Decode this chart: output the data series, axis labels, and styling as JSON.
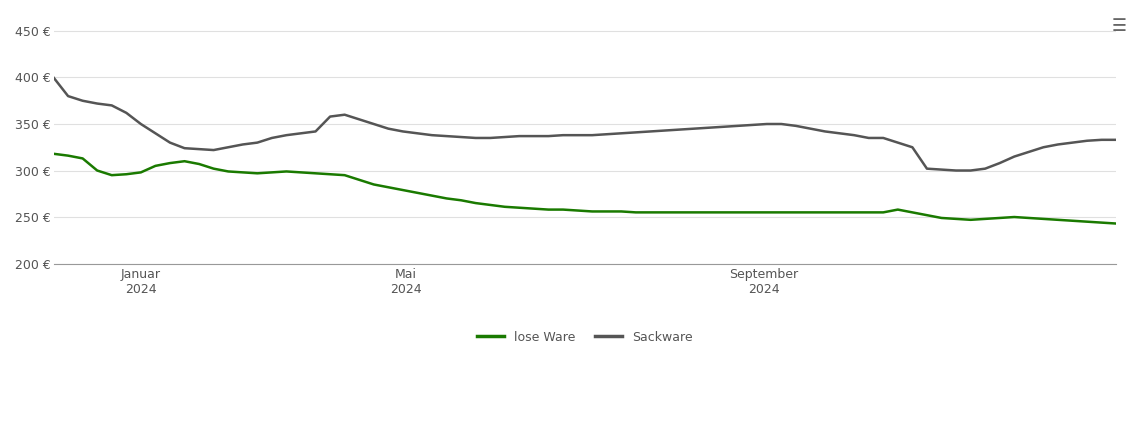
{
  "title": "",
  "background_color": "#ffffff",
  "grid_color": "#e0e0e0",
  "ylim": [
    200,
    460
  ],
  "yticks": [
    200,
    250,
    300,
    350,
    400,
    450
  ],
  "ylabel_format": "{} €",
  "x_tick_labels": [
    "Januar\n2024",
    "Mai\n2024",
    "September\n2024"
  ],
  "lose_ware_color": "#1a7a00",
  "sackware_color": "#555555",
  "legend_lose_ware": "lose Ware",
  "legend_sackware": "Sackware",
  "lose_ware": {
    "dates_approx": [
      0,
      5,
      10,
      15,
      20,
      25,
      30,
      35,
      40,
      45,
      50,
      55,
      60,
      65,
      70,
      75,
      80,
      85,
      90,
      95,
      100,
      105,
      110,
      115,
      120,
      125,
      130,
      135,
      140,
      145,
      150,
      155,
      160,
      165,
      170,
      175,
      180,
      185,
      190,
      195,
      200,
      205,
      210,
      215,
      220,
      225,
      230,
      235,
      240,
      245,
      250,
      255,
      260,
      265,
      270,
      275,
      280,
      285,
      290,
      295,
      300,
      305,
      310,
      315,
      320,
      325,
      330,
      335,
      340,
      345,
      350,
      355,
      360,
      365
    ],
    "values": [
      318,
      316,
      313,
      300,
      295,
      296,
      298,
      305,
      308,
      310,
      307,
      302,
      299,
      298,
      297,
      298,
      299,
      298,
      297,
      296,
      295,
      290,
      285,
      282,
      279,
      276,
      273,
      270,
      268,
      265,
      263,
      261,
      260,
      259,
      258,
      258,
      257,
      256,
      256,
      256,
      255,
      255,
      255,
      255,
      255,
      255,
      255,
      255,
      255,
      255,
      255,
      255,
      255,
      255,
      255,
      255,
      255,
      255,
      258,
      255,
      252,
      249,
      248,
      247,
      248,
      249,
      250,
      249,
      248,
      247,
      246,
      245,
      244,
      243
    ]
  },
  "sackware": {
    "dates_approx": [
      0,
      5,
      10,
      15,
      20,
      25,
      30,
      35,
      40,
      45,
      50,
      55,
      60,
      65,
      70,
      75,
      80,
      85,
      90,
      95,
      100,
      105,
      110,
      115,
      120,
      125,
      130,
      135,
      140,
      145,
      150,
      155,
      160,
      165,
      170,
      175,
      180,
      185,
      190,
      195,
      200,
      205,
      210,
      215,
      220,
      225,
      230,
      235,
      240,
      245,
      250,
      255,
      260,
      265,
      270,
      275,
      280,
      285,
      290,
      295,
      300,
      305,
      310,
      315,
      320,
      325,
      330,
      335,
      340,
      345,
      350,
      355,
      360,
      365
    ],
    "values": [
      400,
      380,
      375,
      372,
      370,
      362,
      350,
      340,
      330,
      324,
      323,
      322,
      325,
      328,
      330,
      335,
      338,
      340,
      342,
      358,
      360,
      355,
      350,
      345,
      342,
      340,
      338,
      337,
      336,
      335,
      335,
      336,
      337,
      337,
      337,
      338,
      338,
      338,
      339,
      340,
      341,
      342,
      343,
      344,
      345,
      346,
      347,
      348,
      349,
      350,
      350,
      348,
      345,
      342,
      340,
      338,
      335,
      335,
      330,
      325,
      302,
      301,
      300,
      300,
      302,
      308,
      315,
      320,
      325,
      328,
      330,
      332,
      333,
      333
    ]
  },
  "x_tick_positions": [
    91,
    274,
    457
  ],
  "total_days": 365,
  "line_width": 1.8
}
